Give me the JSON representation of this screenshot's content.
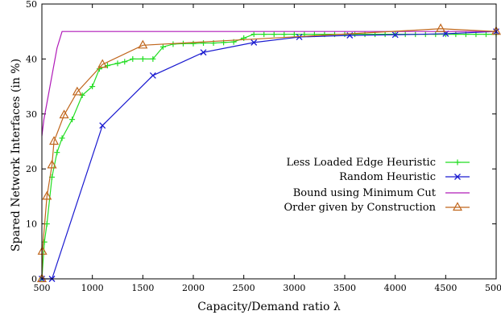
{
  "chart_data": {
    "type": "line",
    "xlabel": "Capacity/Demand ratio λ",
    "ylabel": "Spared Network Interfaces (in %)",
    "xlim": [
      500,
      5000
    ],
    "ylim": [
      0,
      50
    ],
    "x_tick_labels": [
      "500",
      "1000",
      "1500",
      "2000",
      "2500",
      "3000",
      "3500",
      "4000",
      "4500",
      "5000"
    ],
    "y_tick_labels": [
      "0",
      "10",
      "20",
      "30",
      "40",
      "50"
    ],
    "grid": false,
    "legend_position": "center-right",
    "series": [
      {
        "name": "Less Loaded Edge Heuristic",
        "color": "#22dd22",
        "marker": "plus",
        "x": [
          500,
          525,
          550,
          600,
          650,
          700,
          800,
          900,
          1000,
          1070,
          1150,
          1250,
          1320,
          1400,
          1500,
          1600,
          1700,
          1800,
          1900,
          2000,
          2100,
          2200,
          2300,
          2400,
          2500,
          2600,
          2700,
          2800,
          2900,
          3000,
          3100,
          3200,
          3300,
          3400,
          3500,
          3600,
          3700,
          3800,
          3900,
          4000,
          4100,
          4200,
          4300,
          4400,
          4500,
          4600,
          4700,
          4800,
          4900,
          5000
        ],
        "y": [
          0,
          6.7,
          10,
          18.5,
          23,
          25.6,
          29,
          33.4,
          35,
          38.2,
          38.8,
          39.2,
          39.5,
          40,
          40,
          40,
          42.2,
          42.7,
          42.8,
          42.8,
          42.9,
          42.9,
          43,
          43.1,
          43.8,
          44.5,
          44.5,
          44.5,
          44.5,
          44.5,
          44.5,
          44.5,
          44.5,
          44.5,
          44.5,
          44.5,
          44.5,
          44.5,
          44.5,
          44.5,
          44.5,
          44.5,
          44.5,
          44.5,
          44.5,
          44.5,
          44.5,
          44.5,
          44.5,
          44.5
        ]
      },
      {
        "name": "Random Heuristic",
        "color": "#1a1ad0",
        "marker": "x",
        "x": [
          500,
          600,
          1100,
          1600,
          2100,
          2600,
          3050,
          3550,
          4000,
          4500,
          5000
        ],
        "y": [
          0,
          0,
          27.9,
          37,
          41.2,
          43,
          44,
          44.3,
          44.4,
          44.6,
          45
        ]
      },
      {
        "name": "Bound using Minimum Cut",
        "color": "#b01ab8",
        "marker": "none",
        "x": [
          500,
          520,
          550,
          600,
          650,
          700,
          5000
        ],
        "y": [
          26,
          29,
          32,
          37,
          42,
          45,
          45
        ]
      },
      {
        "name": "Order given by Construction",
        "color": "#c0661c",
        "marker": "triangle",
        "x": [
          500,
          505,
          550,
          600,
          620,
          720,
          850,
          1100,
          1500,
          4450,
          5000
        ],
        "y": [
          0,
          5,
          15,
          20.7,
          25,
          29.8,
          34,
          39,
          42.5,
          45.5,
          45
        ]
      }
    ]
  }
}
